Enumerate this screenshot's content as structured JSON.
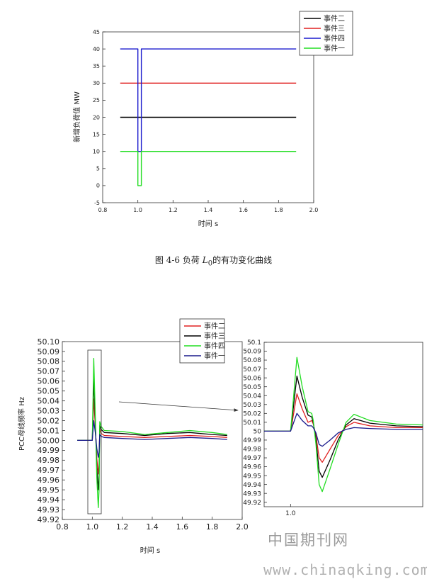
{
  "figure_top": {
    "caption_prefix": "图 4-6 负荷",
    "caption_symbol": "L",
    "caption_subscript": "0",
    "caption_suffix": "的有功变化曲线"
  },
  "figure_bottom": {},
  "watermark": {
    "cn": "中国期刊网",
    "url": "www.chinaqking.com"
  },
  "chart_data": [
    {
      "type": "line",
      "title": "",
      "xlabel": "时间 s",
      "ylabel": "新增负荷值 MW",
      "xlim": [
        0.8,
        2.0
      ],
      "ylim": [
        -5,
        45
      ],
      "xticks": [
        "0.8",
        "1.0",
        "1.2",
        "1.4",
        "1.6",
        "1.8",
        "2.0"
      ],
      "yticks": [
        "-5",
        "0",
        "5",
        "10",
        "15",
        "20",
        "25",
        "30",
        "35",
        "40",
        "45"
      ],
      "grid": false,
      "legend_position": "top-right",
      "series": [
        {
          "name": "事件二",
          "color": "#000000",
          "x": [
            0.9,
            1.9
          ],
          "y": [
            20,
            20
          ]
        },
        {
          "name": "事件三",
          "color": "#e02020",
          "x": [
            0.9,
            1.9
          ],
          "y": [
            30,
            30
          ]
        },
        {
          "name": "事件四",
          "color": "#1a1acd",
          "x": [
            0.9,
            1.0,
            1.0,
            1.02,
            1.02,
            1.9
          ],
          "y": [
            40,
            40,
            10,
            10,
            40,
            40
          ]
        },
        {
          "name": "事件一",
          "color": "#22dd22",
          "x": [
            0.9,
            1.0,
            1.0,
            1.02,
            1.02,
            1.9
          ],
          "y": [
            10,
            10,
            0,
            0,
            10,
            10
          ]
        }
      ]
    },
    {
      "type": "line",
      "title": "",
      "xlabel": "时间 s",
      "ylabel": "PCC母线频率 Hz",
      "xlim": [
        0.8,
        2.0
      ],
      "ylim": [
        49.92,
        50.1
      ],
      "xticks": [
        "0.8",
        "1.0",
        "1.2",
        "1.4",
        "1.6",
        "1.8",
        "2.0"
      ],
      "yticks": [
        "50.10",
        "50.09",
        "50.08",
        "50.07",
        "50.06",
        "50.05",
        "50.04",
        "50.03",
        "50.02",
        "50.01",
        "50.00",
        "49.99",
        "49.98",
        "49.97",
        "49.96",
        "49.95",
        "49.94",
        "49.93",
        "49.92"
      ],
      "grid": false,
      "legend_position": "top-right",
      "series": [
        {
          "name": "事件二",
          "color": "#e02020",
          "x": [
            0.9,
            1.0,
            1.01,
            1.02,
            1.03,
            1.04,
            1.045,
            1.05,
            1.06,
            1.08,
            1.2,
            1.35,
            1.5,
            1.65,
            1.8,
            1.9
          ],
          "y": [
            50.0,
            50.0,
            50.042,
            50.015,
            49.982,
            49.966,
            49.975,
            50.012,
            50.007,
            50.005,
            50.004,
            50.003,
            50.004,
            50.005,
            50.004,
            50.003
          ]
        },
        {
          "name": "事件三",
          "color": "#000000",
          "x": [
            0.9,
            1.0,
            1.01,
            1.02,
            1.03,
            1.04,
            1.045,
            1.05,
            1.06,
            1.08,
            1.2,
            1.35,
            1.5,
            1.65,
            1.8,
            1.9
          ],
          "y": [
            50.0,
            50.0,
            50.062,
            50.02,
            49.972,
            49.95,
            49.965,
            50.015,
            50.011,
            50.008,
            50.007,
            50.005,
            50.007,
            50.008,
            50.006,
            50.005
          ]
        },
        {
          "name": "事件四",
          "color": "#22dd22",
          "x": [
            0.9,
            1.0,
            1.01,
            1.02,
            1.03,
            1.04,
            1.045,
            1.05,
            1.06,
            1.08,
            1.2,
            1.35,
            1.5,
            1.65,
            1.8,
            1.9
          ],
          "y": [
            50.0,
            50.0,
            50.083,
            50.025,
            49.962,
            49.932,
            49.95,
            50.019,
            50.014,
            50.01,
            50.009,
            50.006,
            50.008,
            50.01,
            50.008,
            50.006
          ]
        },
        {
          "name": "事件一",
          "color": "#1a1a8c",
          "x": [
            0.9,
            1.0,
            1.01,
            1.02,
            1.03,
            1.04,
            1.045,
            1.05,
            1.06,
            1.08,
            1.2,
            1.35,
            1.5,
            1.65,
            1.8,
            1.9
          ],
          "y": [
            50.0,
            50.0,
            50.02,
            50.008,
            49.992,
            49.983,
            49.988,
            50.006,
            50.004,
            50.003,
            50.002,
            50.001,
            50.002,
            50.003,
            50.002,
            50.001
          ]
        }
      ]
    },
    {
      "type": "line",
      "title": "",
      "xlabel": "",
      "ylabel": "",
      "xlim": [
        0.95,
        1.25
      ],
      "ylim": [
        49.915,
        50.1
      ],
      "xticks": [
        "1.0"
      ],
      "yticks": [
        "50.1",
        "50.09",
        "50.08",
        "50.07",
        "50.06",
        "50.05",
        "50.04",
        "50.03",
        "50.02",
        "50.01",
        "50",
        "49.99",
        "49.98",
        "49.97",
        "49.96",
        "49.95",
        "49.94",
        "49.93",
        "49.92"
      ],
      "grid": false,
      "legend_position": "none",
      "series": [
        {
          "name": "事件二",
          "color": "#e02020",
          "x": [
            0.95,
            1.0,
            1.003,
            1.012,
            1.022,
            1.033,
            1.04,
            1.043,
            1.048,
            1.054,
            1.06,
            1.075,
            1.09,
            1.105,
            1.12,
            1.15,
            1.2,
            1.25
          ],
          "y": [
            50.0,
            50.0,
            50.01,
            50.042,
            50.025,
            50.01,
            50.012,
            50.008,
            49.995,
            49.97,
            49.965,
            49.98,
            49.995,
            50.005,
            50.01,
            50.006,
            50.004,
            50.004
          ]
        },
        {
          "name": "事件三",
          "color": "#000000",
          "x": [
            0.95,
            1.0,
            1.003,
            1.012,
            1.022,
            1.033,
            1.04,
            1.043,
            1.048,
            1.054,
            1.06,
            1.075,
            1.09,
            1.105,
            1.12,
            1.15,
            1.2,
            1.25
          ],
          "y": [
            50.0,
            50.0,
            50.015,
            50.062,
            50.038,
            50.018,
            50.016,
            50.01,
            49.99,
            49.955,
            49.948,
            49.968,
            49.99,
            50.007,
            50.014,
            50.009,
            50.006,
            50.005
          ]
        },
        {
          "name": "事件四",
          "color": "#22dd22",
          "x": [
            0.95,
            1.0,
            1.003,
            1.012,
            1.022,
            1.033,
            1.04,
            1.043,
            1.048,
            1.054,
            1.06,
            1.075,
            1.09,
            1.105,
            1.12,
            1.15,
            1.2,
            1.25
          ],
          "y": [
            50.0,
            50.0,
            50.02,
            50.083,
            50.05,
            50.022,
            50.02,
            50.012,
            49.985,
            49.94,
            49.932,
            49.958,
            49.985,
            50.01,
            50.019,
            50.012,
            50.008,
            50.007
          ]
        },
        {
          "name": "事件一",
          "color": "#1a1a8c",
          "x": [
            0.95,
            1.0,
            1.003,
            1.012,
            1.022,
            1.033,
            1.04,
            1.043,
            1.048,
            1.054,
            1.06,
            1.075,
            1.09,
            1.105,
            1.12,
            1.15,
            1.2,
            1.25
          ],
          "y": [
            50.0,
            50.0,
            50.005,
            50.02,
            50.012,
            50.006,
            50.006,
            50.004,
            49.998,
            49.985,
            49.983,
            49.99,
            49.998,
            50.002,
            50.004,
            50.003,
            50.002,
            50.002
          ]
        }
      ]
    }
  ]
}
